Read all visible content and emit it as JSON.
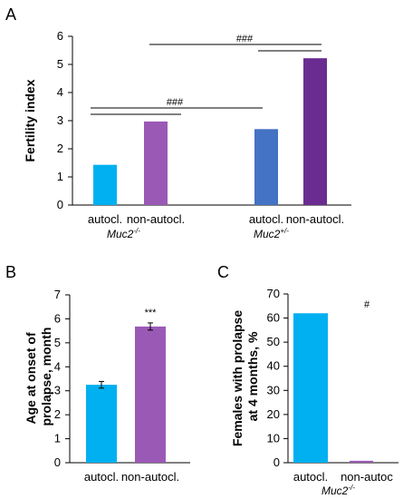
{
  "colors": {
    "autocl_muc2_ko": "#00B0F0",
    "nonautocl_muc2_ko": "#9B59B6",
    "autocl_muc2_het": "#4472C4",
    "nonautocl_muc2_het": "#6A2C91"
  },
  "chart_data": [
    {
      "panel": "A",
      "type": "bar",
      "ylabel": "Fertility index",
      "ylim": [
        0,
        6
      ],
      "yticks": [
        "0",
        "1",
        "2",
        "3",
        "4",
        "5",
        "6"
      ],
      "categories": [
        "autocl.",
        "non-autocl.",
        "autocl.",
        "non-autocl."
      ],
      "values": [
        1.43,
        2.97,
        2.7,
        5.22
      ],
      "groups": [
        {
          "base": "Muc2",
          "sup": "-/-"
        },
        {
          "base": "Muc2",
          "sup": "+/-"
        }
      ],
      "annotations": [
        {
          "text": "###",
          "between": [
            0,
            2
          ]
        },
        {
          "text": "###",
          "between": [
            1,
            3
          ]
        }
      ]
    },
    {
      "panel": "B",
      "type": "bar",
      "ylabel_lines": [
        "Age at onset of",
        "prolapse, month"
      ],
      "ylim": [
        0,
        7
      ],
      "yticks": [
        "0",
        "1",
        "2",
        "3",
        "4",
        "5",
        "6",
        "7"
      ],
      "categories": [
        "autocl.",
        "non-autocl."
      ],
      "values": [
        3.25,
        5.68
      ],
      "errors": [
        0.14,
        0.15
      ],
      "annotations": [
        {
          "text": "***",
          "bar": 1
        }
      ]
    },
    {
      "panel": "C",
      "type": "bar",
      "ylabel_lines": [
        "Females with prolapse",
        "at 4 months, %"
      ],
      "ylim": [
        0,
        70
      ],
      "yticks": [
        "0",
        "10",
        "20",
        "30",
        "40",
        "50",
        "60",
        "70"
      ],
      "categories": [
        "autocl.",
        "non-autoc"
      ],
      "values": [
        62,
        0.8
      ],
      "group": {
        "base": "Muc2",
        "sup": "-/-"
      },
      "annotations": [
        {
          "text": "#",
          "bar": 1
        }
      ]
    }
  ]
}
